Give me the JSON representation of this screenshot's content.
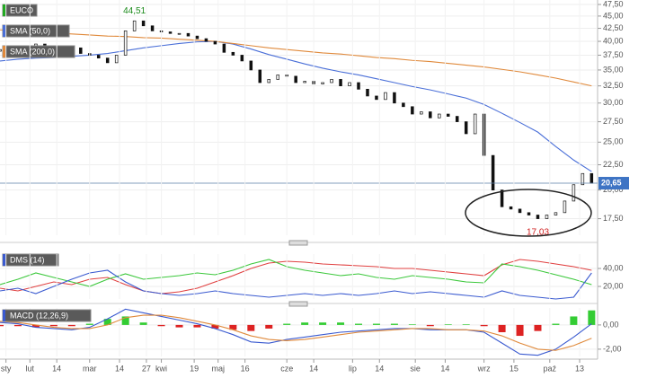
{
  "chart_data": [
    {
      "type": "candlestick",
      "name": "EUCO",
      "log": true,
      "ylim": [
        16.2,
        48.5
      ],
      "xlim": [
        0,
        200
      ],
      "grid": true,
      "up_color": "#ffffff",
      "down_color": "#111111",
      "yticks": [
        {
          "value": 47.5,
          "label": "47,50"
        },
        {
          "value": 45,
          "label": "45,00"
        },
        {
          "value": 42.5,
          "label": "42,50"
        },
        {
          "value": 40,
          "label": "40,00"
        },
        {
          "value": 37.5,
          "label": "37,50"
        },
        {
          "value": 35,
          "label": "35,00"
        },
        {
          "value": 32.5,
          "label": "32,50"
        },
        {
          "value": 30,
          "label": "30,00"
        },
        {
          "value": 27.5,
          "label": "27,50"
        },
        {
          "value": 25,
          "label": "25,00"
        },
        {
          "value": 22.5,
          "label": "22,50"
        },
        {
          "value": 20,
          "label": "20,00"
        },
        {
          "value": 17.5,
          "label": "17,50"
        }
      ],
      "x": [
        0,
        3,
        6,
        9,
        12,
        15,
        18,
        21,
        24,
        27,
        30,
        33,
        36,
        39,
        42,
        45,
        48,
        51,
        54,
        57,
        60,
        63,
        66,
        69,
        72,
        75,
        78,
        81,
        84,
        87,
        90,
        93,
        96,
        99,
        102,
        105,
        108,
        111,
        114,
        117,
        120,
        123,
        126,
        129,
        132,
        135,
        138,
        141,
        144,
        147,
        150,
        153,
        156,
        159,
        162,
        165,
        168,
        171,
        174,
        177,
        180,
        183,
        186,
        189,
        192,
        195,
        198
      ],
      "open": [
        38.2,
        38.5,
        38.0,
        39.0,
        38.2,
        39.5,
        39.0,
        38.5,
        38.0,
        38.8,
        37.8,
        37.5,
        37.0,
        36.2,
        37.5,
        42.0,
        44.0,
        43.0,
        42.0,
        41.8,
        41.5,
        41.5,
        41.0,
        40.5,
        40.0,
        39.5,
        38.0,
        37.5,
        36.5,
        35.0,
        33.0,
        33.5,
        34.2,
        34.0,
        33.0,
        33.2,
        32.8,
        33.0,
        33.5,
        32.5,
        33.0,
        32.0,
        31.0,
        30.5,
        31.5,
        30.0,
        29.5,
        28.5,
        28.8,
        28.0,
        28.5,
        28.2,
        27.5,
        26.0,
        28.5,
        23.5,
        20.0,
        18.5,
        18.3,
        18.0,
        17.8,
        17.5,
        17.8,
        18.0,
        19.0,
        20.5,
        21.6
      ],
      "close": [
        38.5,
        38.0,
        39.0,
        38.2,
        39.5,
        39.0,
        38.5,
        38.0,
        38.8,
        37.8,
        37.5,
        37.0,
        36.2,
        37.5,
        42.0,
        44.0,
        43.0,
        42.0,
        41.8,
        41.5,
        41.5,
        41.0,
        40.5,
        40.0,
        39.5,
        38.0,
        37.5,
        36.5,
        35.0,
        33.0,
        33.5,
        34.2,
        34.0,
        33.0,
        33.2,
        32.8,
        33.0,
        33.5,
        32.5,
        33.0,
        32.0,
        31.0,
        30.5,
        31.5,
        30.0,
        29.5,
        28.5,
        28.8,
        28.0,
        28.5,
        28.2,
        27.5,
        26.0,
        28.5,
        23.5,
        20.0,
        18.5,
        18.3,
        18.0,
        17.8,
        17.5,
        17.8,
        18.0,
        19.0,
        20.5,
        21.6,
        20.65
      ],
      "last": {
        "value": 20.65,
        "label": "20,65"
      },
      "annotations": [
        {
          "x": 45,
          "value": 44.51,
          "label": "44,51",
          "color": "#1a8a1a"
        },
        {
          "x": 180,
          "value": 17.03,
          "label": "17,03",
          "color": "#d02020"
        }
      ],
      "series": [
        {
          "name": "SMA (50,0)",
          "color": "#4a6fd8",
          "x": [
            0,
            6,
            12,
            18,
            24,
            30,
            36,
            42,
            48,
            54,
            60,
            66,
            72,
            78,
            84,
            90,
            96,
            102,
            108,
            114,
            120,
            126,
            132,
            138,
            144,
            150,
            156,
            162,
            168,
            174,
            180,
            186,
            192,
            198
          ],
          "values": [
            36.5,
            36.8,
            37.0,
            37.1,
            37.3,
            37.5,
            37.8,
            38.3,
            38.8,
            39.2,
            39.6,
            39.9,
            40.0,
            39.5,
            38.6,
            37.6,
            36.8,
            36.0,
            35.3,
            34.7,
            34.2,
            33.6,
            33.0,
            32.4,
            31.9,
            31.3,
            30.7,
            29.8,
            28.6,
            27.4,
            26.2,
            24.5,
            23.0,
            21.8
          ]
        },
        {
          "name": "SMA (200,0)",
          "color": "#e08a3c",
          "x": [
            0,
            6,
            12,
            18,
            24,
            30,
            36,
            42,
            48,
            54,
            60,
            66,
            72,
            78,
            84,
            90,
            96,
            102,
            108,
            114,
            120,
            126,
            132,
            138,
            144,
            150,
            156,
            162,
            168,
            174,
            180,
            186,
            192,
            198
          ],
          "values": [
            42.2,
            42.0,
            41.8,
            41.6,
            41.4,
            41.2,
            41.0,
            40.9,
            40.7,
            40.6,
            40.4,
            40.2,
            40.0,
            39.6,
            39.2,
            38.8,
            38.5,
            38.2,
            37.9,
            37.7,
            37.4,
            37.1,
            36.9,
            36.6,
            36.4,
            36.1,
            35.8,
            35.5,
            35.1,
            34.7,
            34.2,
            33.7,
            33.1,
            32.5
          ]
        }
      ]
    },
    {
      "type": "line",
      "name": "DMS (14)",
      "ylim": [
        6,
        56
      ],
      "xlim": [
        0,
        200
      ],
      "yticks": [
        {
          "value": 40,
          "label": "40,00"
        },
        {
          "value": 20,
          "label": "20,00"
        }
      ],
      "x": [
        0,
        6,
        12,
        18,
        24,
        30,
        36,
        42,
        48,
        54,
        60,
        66,
        72,
        78,
        84,
        90,
        96,
        102,
        108,
        114,
        120,
        126,
        132,
        138,
        144,
        150,
        156,
        162,
        168,
        174,
        180,
        186,
        192,
        198
      ],
      "series": [
        {
          "color": "#e04040",
          "values": [
            18,
            15,
            20,
            25,
            22,
            28,
            30,
            22,
            15,
            12,
            14,
            18,
            25,
            32,
            40,
            46,
            48,
            47,
            45,
            44,
            43,
            42,
            40,
            40,
            38,
            36,
            34,
            32,
            44,
            50,
            48,
            45,
            42,
            38
          ]
        },
        {
          "color": "#3cc83c",
          "values": [
            22,
            28,
            35,
            30,
            25,
            20,
            28,
            34,
            28,
            30,
            32,
            35,
            33,
            38,
            45,
            50,
            42,
            38,
            35,
            32,
            34,
            30,
            28,
            32,
            30,
            28,
            25,
            24,
            45,
            42,
            38,
            33,
            28,
            22
          ]
        },
        {
          "color": "#3a5ad0",
          "values": [
            15,
            18,
            12,
            20,
            28,
            35,
            38,
            25,
            15,
            12,
            10,
            12,
            15,
            12,
            10,
            8,
            10,
            12,
            10,
            12,
            10,
            12,
            15,
            12,
            14,
            12,
            10,
            8,
            15,
            10,
            8,
            6,
            8,
            35
          ]
        }
      ]
    },
    {
      "type": "macd",
      "name": "MACD (12,26,9)",
      "ylim": [
        -2.6,
        1.4
      ],
      "xlim": [
        0,
        200
      ],
      "yticks": [
        {
          "value": 0,
          "label": "0,00"
        },
        {
          "value": -2,
          "label": "-2,00"
        }
      ],
      "xticks": [
        {
          "value": 2,
          "label": "sty"
        },
        {
          "value": 10,
          "label": "lut"
        },
        {
          "value": 19,
          "label": "14"
        },
        {
          "value": 30,
          "label": "mar"
        },
        {
          "value": 40,
          "label": "14"
        },
        {
          "value": 49,
          "label": "27"
        },
        {
          "value": 54,
          "label": "kwi"
        },
        {
          "value": 65,
          "label": "19"
        },
        {
          "value": 73,
          "label": "maj"
        },
        {
          "value": 82,
          "label": "16"
        },
        {
          "value": 96,
          "label": "cze"
        },
        {
          "value": 105,
          "label": "14"
        },
        {
          "value": 118,
          "label": "lip"
        },
        {
          "value": 127,
          "label": "14"
        },
        {
          "value": 139,
          "label": "sie"
        },
        {
          "value": 149,
          "label": "14"
        },
        {
          "value": 162,
          "label": "wrz"
        },
        {
          "value": 172,
          "label": "15"
        },
        {
          "value": 184,
          "label": "paź"
        },
        {
          "value": 194,
          "label": "13"
        }
      ],
      "x": [
        0,
        6,
        12,
        18,
        24,
        30,
        36,
        42,
        48,
        54,
        60,
        66,
        72,
        78,
        84,
        90,
        96,
        102,
        108,
        114,
        120,
        126,
        132,
        138,
        144,
        150,
        156,
        162,
        168,
        174,
        180,
        186,
        192,
        198
      ],
      "positive_color": "#33cc33",
      "negative_color": "#dd2222",
      "histogram": [
        -0.1,
        -0.1,
        -0.2,
        -0.1,
        -0.1,
        0.1,
        0.5,
        0.7,
        0.2,
        -0.1,
        -0.2,
        -0.2,
        -0.3,
        -0.4,
        -0.5,
        -0.3,
        0.1,
        0.2,
        0.2,
        0.2,
        0.1,
        0.1,
        0.1,
        0.05,
        -0.1,
        0.05,
        0.05,
        -0.1,
        -0.6,
        -0.9,
        -0.5,
        0.1,
        0.7,
        1.2
      ],
      "series": [
        {
          "color": "#3a5ad0",
          "values": [
            0.2,
            0.1,
            -0.2,
            -0.3,
            -0.4,
            -0.2,
            0.5,
            1.3,
            1.0,
            0.7,
            0.4,
            0.1,
            -0.3,
            -0.8,
            -1.4,
            -1.5,
            -1.2,
            -1.0,
            -0.8,
            -0.6,
            -0.5,
            -0.4,
            -0.3,
            -0.3,
            -0.4,
            -0.4,
            -0.4,
            -0.6,
            -1.5,
            -2.4,
            -2.5,
            -2.0,
            -1.0,
            0.1
          ]
        },
        {
          "color": "#e08a3c",
          "values": [
            0.3,
            0.2,
            0.0,
            -0.2,
            -0.3,
            -0.3,
            0.0,
            0.6,
            0.8,
            0.8,
            0.6,
            0.3,
            0.0,
            -0.4,
            -0.9,
            -1.2,
            -1.3,
            -1.2,
            -1.0,
            -0.8,
            -0.6,
            -0.5,
            -0.4,
            -0.3,
            -0.3,
            -0.4,
            -0.4,
            -0.5,
            -0.9,
            -1.5,
            -2.0,
            -2.1,
            -1.7,
            -1.1
          ]
        }
      ]
    }
  ]
}
